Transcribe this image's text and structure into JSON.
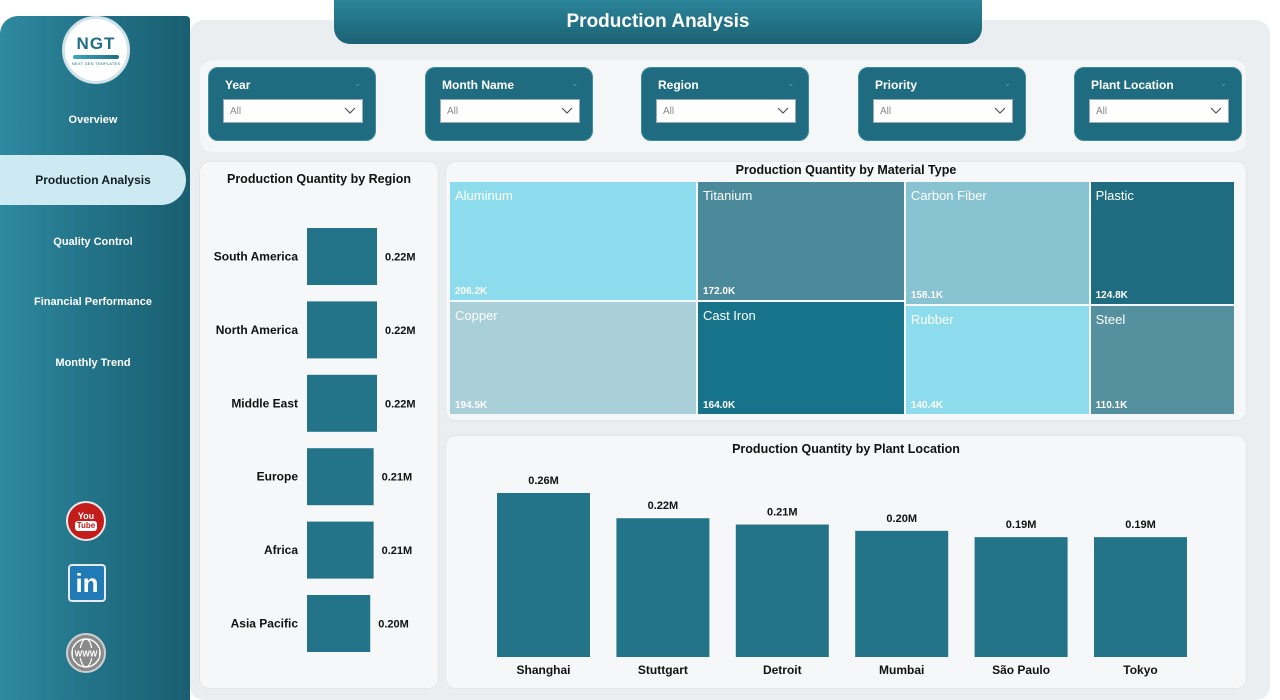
{
  "app": {
    "title": "Production Analysis",
    "logo": {
      "main": "NGT",
      "sub": "NEXT GEN TEMPLATES"
    }
  },
  "sidebar": {
    "items": [
      {
        "label": "Overview",
        "active": false
      },
      {
        "label": "Production Analysis",
        "active": true
      },
      {
        "label": "Quality Control",
        "active": false
      },
      {
        "label": "Financial Performance",
        "active": false
      },
      {
        "label": "Monthly Trend",
        "active": false
      }
    ],
    "social": [
      {
        "icon": "youtube-icon",
        "label_top": "You",
        "label_bottom": "Tube"
      },
      {
        "icon": "linkedin-icon",
        "label": "in"
      },
      {
        "icon": "web-icon",
        "label": "WWW"
      }
    ]
  },
  "filters": [
    {
      "label": "Year",
      "value": "All"
    },
    {
      "label": "Month Name",
      "value": "All"
    },
    {
      "label": "Region",
      "value": "All"
    },
    {
      "label": "Priority",
      "value": "All"
    },
    {
      "label": "Plant Location",
      "value": "All"
    }
  ],
  "colors": {
    "primary": "#237489",
    "sidebar": "#237489",
    "active_nav": "#cde9f1",
    "bar": "#237489"
  },
  "chart_data": [
    {
      "type": "bar",
      "orientation": "horizontal",
      "title": "Production Quantity by Region",
      "categories": [
        "South America",
        "North America",
        "Middle East",
        "Europe",
        "Africa",
        "Asia Pacific"
      ],
      "values": [
        0.22,
        0.22,
        0.22,
        0.21,
        0.21,
        0.2
      ],
      "labels": [
        "0.22M",
        "0.22M",
        "0.22M",
        "0.21M",
        "0.21M",
        "0.20M"
      ],
      "unit": "M",
      "xlim": [
        0,
        0.22
      ]
    },
    {
      "type": "treemap",
      "title": "Production Quantity by Material Type",
      "items": [
        {
          "name": "Aluminum",
          "value": 206.2,
          "label": "206.2K",
          "color": "#8ddced"
        },
        {
          "name": "Titanium",
          "value": 172.0,
          "label": "172.0K",
          "color": "#4b8a9a"
        },
        {
          "name": "Carbon Fiber",
          "value": 158.1,
          "label": "158.1K",
          "color": "#88c3d2"
        },
        {
          "name": "Plastic",
          "value": 124.8,
          "label": "124.8K",
          "color": "#1f6c80"
        },
        {
          "name": "Copper",
          "value": 194.5,
          "label": "194.5K",
          "color": "#a9cfd9"
        },
        {
          "name": "Cast Iron",
          "value": 164.0,
          "label": "164.0K",
          "color": "#17738a"
        },
        {
          "name": "Rubber",
          "value": 140.4,
          "label": "140.4K",
          "color": "#8ddced"
        },
        {
          "name": "Steel",
          "value": 110.1,
          "label": "110.1K",
          "color": "#55909e"
        }
      ]
    },
    {
      "type": "bar",
      "title": "Production Quantity by Plant Location",
      "categories": [
        "Shanghai",
        "Stuttgart",
        "Detroit",
        "Mumbai",
        "São Paulo",
        "Tokyo"
      ],
      "values": [
        0.26,
        0.22,
        0.21,
        0.2,
        0.19,
        0.19
      ],
      "labels": [
        "0.26M",
        "0.22M",
        "0.21M",
        "0.20M",
        "0.19M",
        "0.19M"
      ],
      "unit": "M",
      "ylim": [
        0,
        0.26
      ]
    }
  ]
}
